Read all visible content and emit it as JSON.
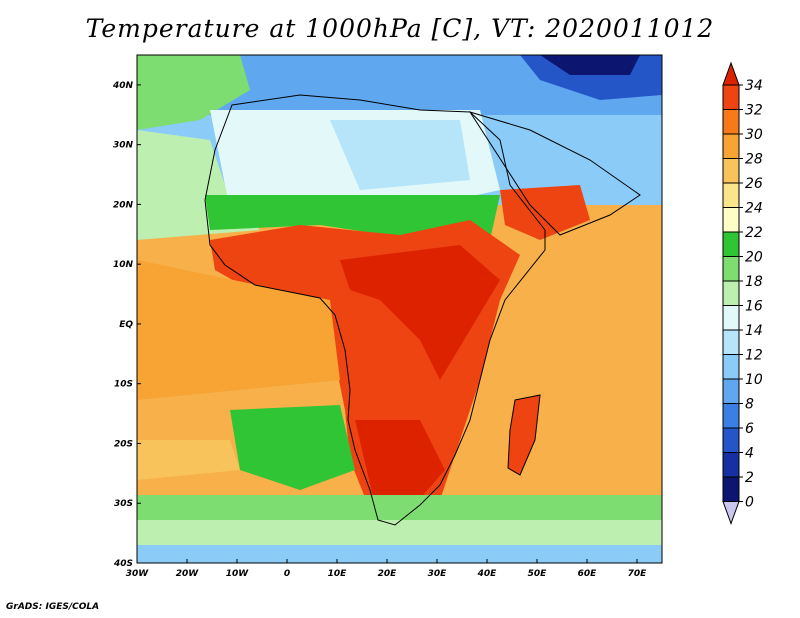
{
  "title": "Temperature at 1000hPa [C], VT: 2020011012",
  "credit": "GrADS: IGES/COLA",
  "map": {
    "lon_labels": [
      "30W",
      "20W",
      "10W",
      "0",
      "10E",
      "20E",
      "30E",
      "40E",
      "50E",
      "60E",
      "70E"
    ],
    "lat_labels": [
      "40N",
      "30N",
      "20N",
      "10N",
      "EQ",
      "10S",
      "20S",
      "30S",
      "40S"
    ],
    "lon_range": [
      -30,
      75
    ],
    "lat_range": [
      -40,
      45
    ]
  },
  "colorbar": {
    "labels": [
      "34",
      "32",
      "30",
      "28",
      "26",
      "24",
      "22",
      "20",
      "18",
      "16",
      "14",
      "12",
      "10",
      "8",
      "6",
      "4",
      "2",
      "0"
    ],
    "colors": [
      "#dd2200",
      "#ee4411",
      "#f77a1a",
      "#f7a434",
      "#f8c35a",
      "#fbe58a",
      "#fefdc6",
      "#2fc535",
      "#7edd70",
      "#bdf0b0",
      "#e3f8f8",
      "#b6e4f8",
      "#8acbf8",
      "#5fa8f0",
      "#3a7fe4",
      "#2556c8",
      "#162fa2",
      "#0c1670",
      "#c9c6f0"
    ]
  }
}
